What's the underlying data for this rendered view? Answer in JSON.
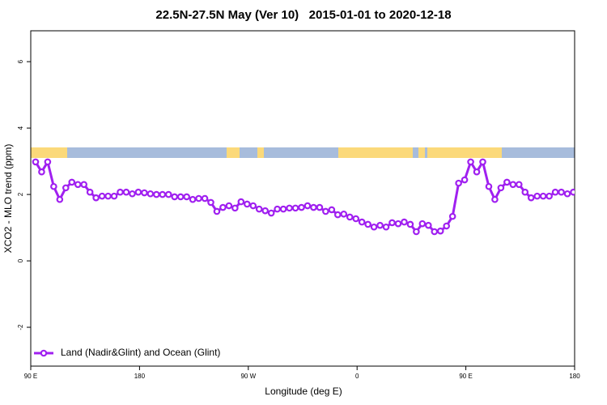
{
  "chart_data": {
    "type": "line",
    "title": "22.5N-27.5N May (Ver 10)   2015-01-01 to 2020-12-18",
    "xlabel": "Longitude (deg E)",
    "ylabel": "XCO2 - MLO trend (ppm)",
    "xlim": [
      90,
      540
    ],
    "ylim": [
      -3.17,
      6.93
    ],
    "xticks": [
      {
        "value": 90,
        "label": "90 E"
      },
      180,
      {
        "value": 270,
        "label": "90 W"
      },
      {
        "value": 360,
        "label": "0"
      },
      {
        "value": 450,
        "label": "90 E"
      },
      {
        "value": 540,
        "label": "180"
      }
    ],
    "yticks": [
      -2,
      0,
      2,
      4,
      6
    ],
    "legend": "bottom-left",
    "x": [
      94,
      99,
      104,
      109,
      114,
      119,
      124,
      129,
      134,
      139,
      144,
      149,
      154,
      159,
      164,
      169,
      174,
      179,
      184,
      189,
      194,
      199,
      204,
      209,
      214,
      219,
      224,
      229,
      234,
      239,
      244,
      249,
      254,
      259,
      264,
      269,
      274,
      279,
      284,
      289,
      294,
      299,
      304,
      309,
      314,
      319,
      324,
      329,
      334,
      339,
      344,
      349,
      354,
      359,
      364,
      369,
      374,
      379,
      384,
      389,
      394,
      399,
      404,
      409,
      414,
      419,
      424,
      429,
      434,
      439,
      444,
      449,
      454,
      459,
      464,
      469,
      474,
      479,
      484,
      489,
      494,
      499,
      504,
      509,
      514,
      519,
      524,
      529,
      534,
      539
    ],
    "series": [
      {
        "name": "Land (Nadir&Glint) and Ocean (Glint)",
        "color": "#a020f0",
        "values": [
          2.98,
          2.68,
          2.98,
          2.24,
          1.85,
          2.2,
          2.37,
          2.3,
          2.3,
          2.07,
          1.9,
          1.95,
          1.95,
          1.95,
          2.07,
          2.07,
          2.02,
          2.07,
          2.05,
          2.02,
          2.0,
          2.0,
          2.0,
          1.93,
          1.93,
          1.93,
          1.85,
          1.88,
          1.88,
          1.76,
          1.49,
          1.61,
          1.66,
          1.59,
          1.78,
          1.71,
          1.66,
          1.56,
          1.51,
          1.44,
          1.56,
          1.56,
          1.59,
          1.59,
          1.61,
          1.66,
          1.61,
          1.61,
          1.49,
          1.54,
          1.39,
          1.41,
          1.32,
          1.27,
          1.17,
          1.1,
          1.02,
          1.07,
          1.02,
          1.15,
          1.12,
          1.17,
          1.1,
          0.88,
          1.12,
          1.07,
          0.88,
          0.9,
          1.05,
          1.34,
          2.34,
          2.44,
          2.98,
          2.68,
          2.98,
          2.24,
          1.85,
          2.2,
          2.37,
          2.3,
          2.3,
          2.07,
          1.9,
          1.95,
          1.95,
          1.95,
          2.07,
          2.07,
          2.02,
          2.07
        ]
      }
    ]
  }
}
